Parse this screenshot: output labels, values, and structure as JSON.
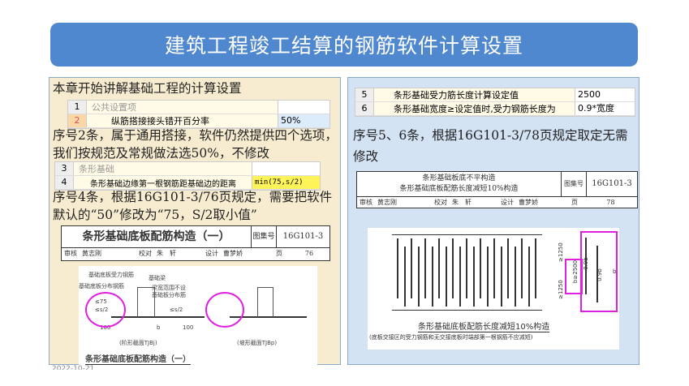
{
  "title": "建筑工程竣工结算的钢筋软件计算设置",
  "left": {
    "intro": "本章开始讲解基础工程的计算设置",
    "table1": [
      {
        "no": "1",
        "name": "公共设置项",
        "value": ""
      },
      {
        "no": "2",
        "name": "纵筋搭接接头错开百分率",
        "value": "50%"
      }
    ],
    "para1": "序号2条，属于通用搭接，软件仍然提供四个选项，我们按规范及常规做法选50%，不修改",
    "table2": [
      {
        "no": "3",
        "name": "条形基础",
        "value": ""
      },
      {
        "no": "4",
        "name": "条形基础边缘第一根钢筋距基础边的距离",
        "value": "min(75,s/2)"
      }
    ],
    "para2": "序号4条，根据16G101-3/76页规定，需要把软件默认的“50”修改为“75，S/2取小值”",
    "titleblock": {
      "title": "条形基础底板配筋构造（一）",
      "atlas_label": "图集号",
      "atlas": "16G101-3",
      "row": [
        "审核",
        "黄志刚",
        "校对",
        "朱　轩",
        "设计",
        "曹梦娇",
        "页",
        "76"
      ]
    },
    "figure": {
      "labels": [
        "基础底板受力钢筋",
        "基础梁",
        "基础底板分布钢筋",
        "梁宽范围不设",
        "基础板分布筋",
        "≤75",
        "≤s/2",
        "≤s/2",
        "100",
        "b",
        "100"
      ],
      "captions": [
        "(阶形截面TJBj)",
        "(坡形截面TJBp)"
      ],
      "title": "条形基础底板配筋构造（一）"
    }
  },
  "right": {
    "table": [
      {
        "no": "5",
        "name": "条形基础受力筋长度计算设定值",
        "value": "2500"
      },
      {
        "no": "6",
        "name": "条形基础宽度≥设定值时,受力钢筋长度为",
        "value": "0.9*宽度"
      }
    ],
    "para": "序号5、6条，根据16G101-3/78页规定取定无需修改",
    "titleblock": {
      "title1": "条形基础板底不平构造",
      "title2": "条形基础底板配筋长度减短10%构造",
      "atlas_label": "图集号",
      "atlas": "16G101-3",
      "row": [
        "审核",
        "黄志刚",
        "校对",
        "朱　轩",
        "设计",
        "曹梦娇",
        "页",
        "78"
      ]
    },
    "figure": {
      "dims": [
        "≥1250",
        "b≥2500",
        "≥1250",
        "0.9b",
        "0.9b",
        "b"
      ],
      "title": "条形基础底板配筋长度减短10%构造",
      "note": "(底板交接区的受力钢筋和无交接底板时端部第一根钢筋不应减短)"
    }
  },
  "date": "2022-10-21"
}
